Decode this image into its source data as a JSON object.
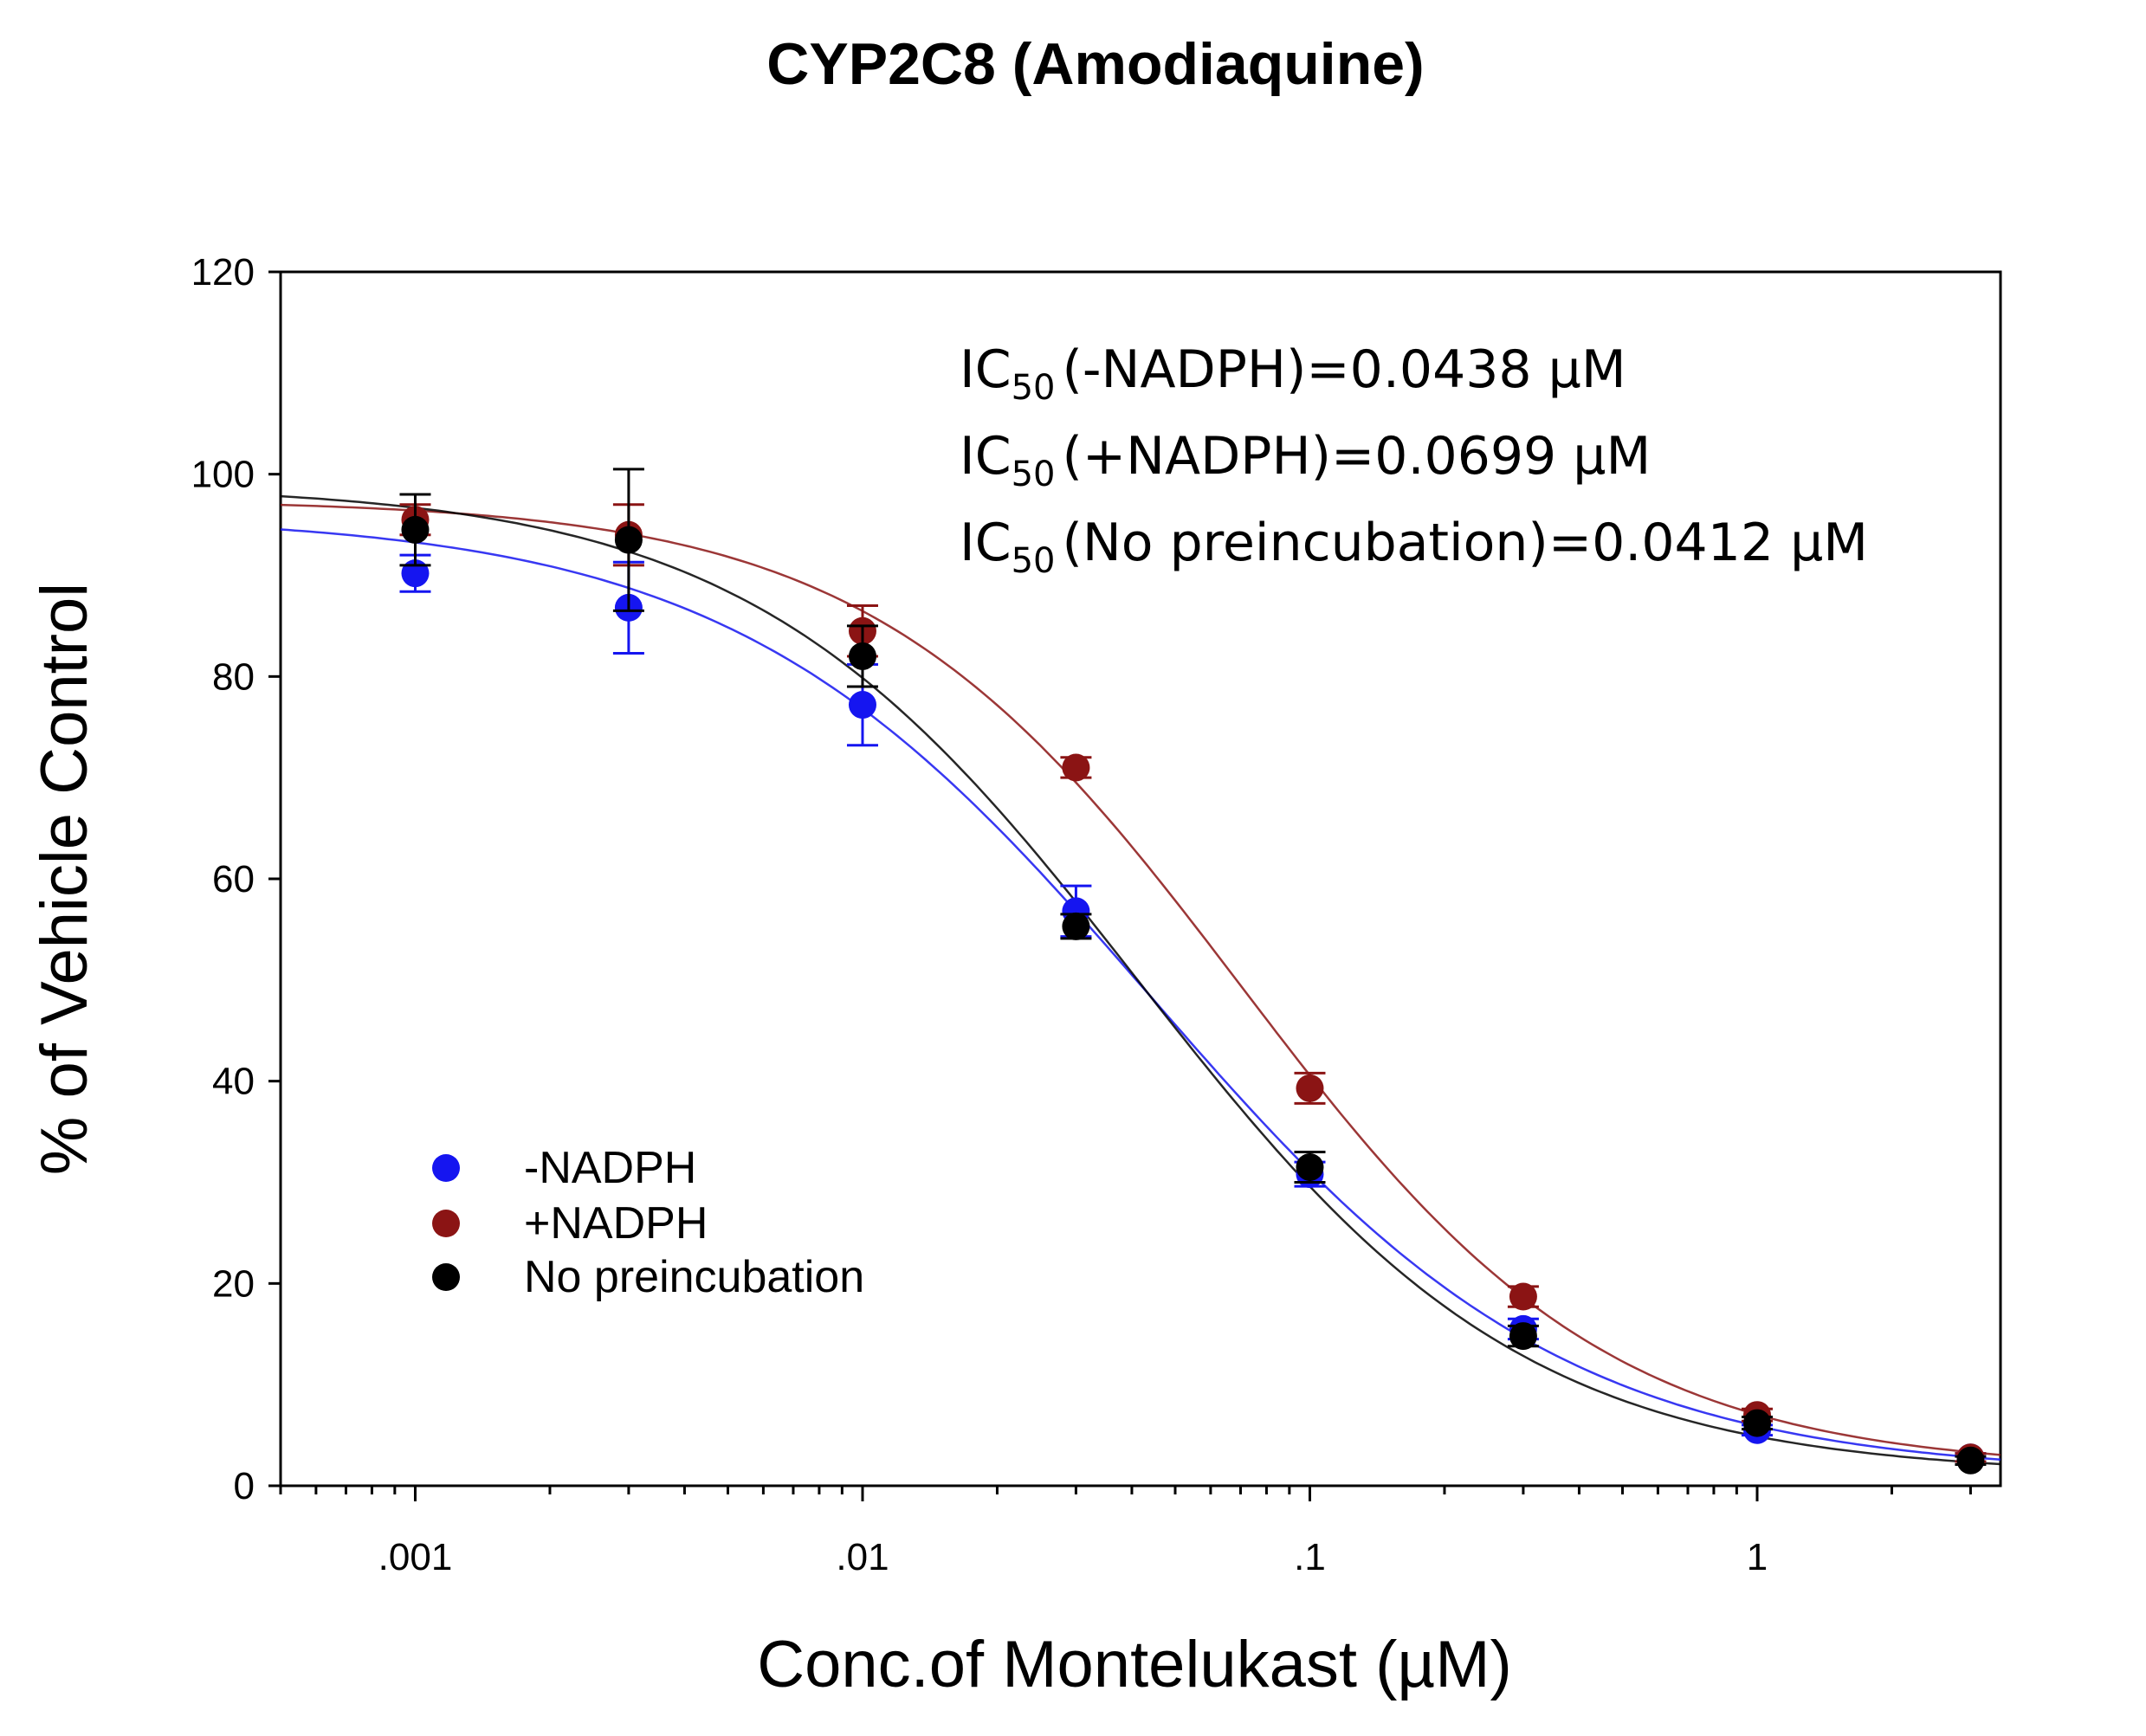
{
  "chart_data": {
    "type": "scatter",
    "title": "CYP2C8 (Amodiaquine)",
    "xlabel": "Conc.of Montelukast (µM)",
    "ylabel": "% of Vehicle Control",
    "xscale": "log",
    "xlim": [
      0.0005,
      3.5
    ],
    "ylim": [
      0,
      120
    ],
    "xticks": [
      0.001,
      0.01,
      0.1,
      1
    ],
    "xtick_labels": [
      ".001",
      ".01",
      ".1",
      "1"
    ],
    "yticks": [
      0,
      20,
      40,
      60,
      80,
      100,
      120
    ],
    "ytick_labels": [
      "0",
      "20",
      "40",
      "60",
      "80",
      "100",
      "120"
    ],
    "grid": false,
    "legend_position": "lower-left",
    "x": [
      0.001,
      0.003,
      0.01,
      0.03,
      0.1,
      0.3,
      1,
      3
    ],
    "series": [
      {
        "name": "-NADPH",
        "color": "#1515f0",
        "values": [
          90.2,
          86.8,
          77.2,
          56.8,
          30.8,
          15.5,
          5.5,
          2.8
        ],
        "errors": [
          1.8,
          4.5,
          4.0,
          2.5,
          1.2,
          1.0,
          0.5,
          0.4
        ],
        "fit": {
          "ic50": 0.0438,
          "top": 96.0,
          "bottom": 1.0,
          "hill": 0.93
        }
      },
      {
        "name": "+NADPH",
        "color": "#8b1414",
        "values": [
          95.5,
          94.0,
          84.5,
          71.0,
          39.3,
          18.7,
          7.0,
          2.8
        ],
        "errors": [
          1.5,
          3.0,
          2.5,
          1.0,
          1.5,
          1.0,
          0.6,
          0.4
        ],
        "fit": {
          "ic50": 0.0699,
          "top": 97.5,
          "bottom": 1.5,
          "hill": 1.05
        }
      },
      {
        "name": "No preincubation",
        "color": "#000000",
        "values": [
          94.5,
          93.5,
          82.0,
          55.3,
          31.5,
          14.8,
          6.2,
          2.5
        ],
        "errors": [
          3.5,
          7.0,
          3.0,
          1.2,
          1.5,
          1.0,
          0.6,
          0.4
        ],
        "fit": {
          "ic50": 0.0412,
          "top": 99.0,
          "bottom": 1.0,
          "hill": 1.0
        }
      }
    ],
    "annotations": [
      {
        "prefix": "IC",
        "subscript": "50",
        "text": "(-NADPH)=0.0438 µM"
      },
      {
        "prefix": "IC",
        "subscript": "50",
        "text": "(+NADPH)=0.0699 µM"
      },
      {
        "prefix": "IC",
        "subscript": "50",
        "text": "(No preincubation)=0.0412 µM"
      }
    ]
  }
}
